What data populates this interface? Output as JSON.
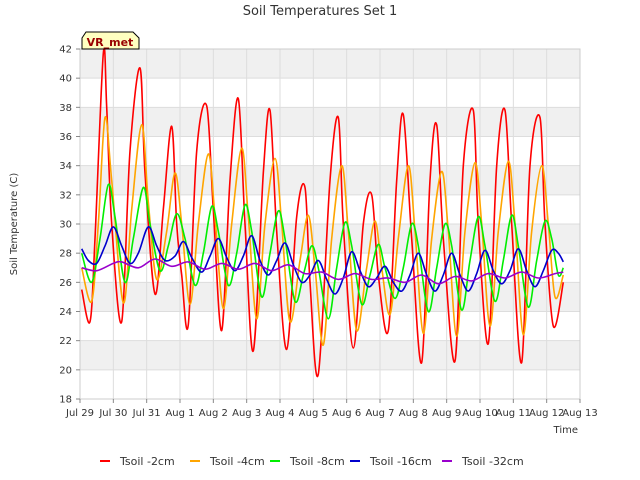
{
  "chart_data": {
    "type": "line",
    "title": "Soil Temperatures Set 1",
    "xlabel": "Time",
    "ylabel": "Soil Temperature (C)",
    "badge": "VR_met",
    "xlim": [
      29.0,
      44.0
    ],
    "ylim": [
      18,
      42
    ],
    "yticks": [
      18,
      20,
      22,
      24,
      26,
      28,
      30,
      32,
      34,
      36,
      38,
      40,
      42
    ],
    "xticks": [
      {
        "x": 29,
        "label": "Jul 29"
      },
      {
        "x": 30,
        "label": "Jul 30"
      },
      {
        "x": 31,
        "label": "Jul 31"
      },
      {
        "x": 32,
        "label": "Aug 1"
      },
      {
        "x": 33,
        "label": "Aug 2"
      },
      {
        "x": 34,
        "label": "Aug 3"
      },
      {
        "x": 35,
        "label": "Aug 4"
      },
      {
        "x": 36,
        "label": "Aug 5"
      },
      {
        "x": 37,
        "label": "Aug 6"
      },
      {
        "x": 38,
        "label": "Aug 7"
      },
      {
        "x": 39,
        "label": "Aug 8"
      },
      {
        "x": 40,
        "label": "Aug 9"
      },
      {
        "x": 41,
        "label": "Aug 10"
      },
      {
        "x": 42,
        "label": "Aug 11"
      },
      {
        "x": 43,
        "label": "Aug 12"
      },
      {
        "x": 44,
        "label": "Aug 13"
      }
    ],
    "grid": true,
    "legend_position": "bottom",
    "background_bands": "#f0f0f0",
    "series": [
      {
        "name": "Tsoil -2cm",
        "color": "#ff0000",
        "x": [
          29.05,
          29.3,
          29.45,
          29.7,
          29.8,
          29.95,
          30.25,
          30.5,
          30.8,
          30.95,
          31.25,
          31.5,
          31.75,
          31.9,
          32.05,
          32.25,
          32.5,
          32.8,
          33.0,
          33.25,
          33.5,
          33.75,
          33.95,
          34.2,
          34.5,
          34.7,
          34.9,
          35.2,
          35.5,
          35.75,
          35.9,
          36.15,
          36.5,
          36.75,
          36.9,
          37.2,
          37.5,
          37.75,
          37.95,
          38.25,
          38.5,
          38.7,
          38.95,
          39.25,
          39.5,
          39.7,
          39.9,
          40.25,
          40.5,
          40.8,
          40.95,
          41.25,
          41.5,
          41.75,
          41.95,
          42.25,
          42.5,
          42.8,
          42.95,
          43.2,
          43.5
        ],
        "y": [
          25.5,
          23.3,
          29.0,
          41.7,
          38.0,
          30.0,
          23.3,
          35.0,
          40.7,
          33.5,
          25.2,
          31.0,
          36.7,
          30.0,
          26.5,
          23.1,
          35.0,
          38.1,
          31.0,
          22.7,
          33.0,
          38.6,
          30.0,
          21.3,
          33.5,
          37.8,
          29.5,
          21.4,
          30.5,
          32.5,
          26.0,
          19.7,
          33.0,
          37.3,
          30.0,
          21.5,
          30.0,
          32.0,
          26.5,
          22.7,
          33.0,
          37.5,
          29.0,
          20.5,
          33.0,
          36.8,
          29.0,
          20.6,
          34.0,
          37.8,
          30.0,
          21.8,
          34.0,
          37.8,
          30.0,
          20.5,
          34.0,
          37.3,
          30.0,
          23.0,
          26.0
        ]
      },
      {
        "name": "Tsoil -4cm",
        "color": "#ffa500",
        "x": [
          29.05,
          29.35,
          29.55,
          29.75,
          29.95,
          30.3,
          30.55,
          30.85,
          31.05,
          31.3,
          31.6,
          31.85,
          32.05,
          32.3,
          32.55,
          32.85,
          33.05,
          33.3,
          33.55,
          33.85,
          34.05,
          34.3,
          34.55,
          34.85,
          35.05,
          35.3,
          35.6,
          35.85,
          36.05,
          36.3,
          36.55,
          36.85,
          37.05,
          37.3,
          37.6,
          37.85,
          38.05,
          38.3,
          38.55,
          38.85,
          39.05,
          39.3,
          39.55,
          39.85,
          40.05,
          40.3,
          40.55,
          40.85,
          41.05,
          41.3,
          41.55,
          41.85,
          42.05,
          42.3,
          42.55,
          42.85,
          43.05,
          43.25,
          43.5
        ],
        "y": [
          27.0,
          24.7,
          30.0,
          37.3,
          33.0,
          24.6,
          31.0,
          36.8,
          31.5,
          26.2,
          29.5,
          33.5,
          30.0,
          24.5,
          30.0,
          34.8,
          30.5,
          24.2,
          30.0,
          35.2,
          30.5,
          23.5,
          30.0,
          34.5,
          30.0,
          23.3,
          27.5,
          30.6,
          27.0,
          21.7,
          29.0,
          34.0,
          29.5,
          22.7,
          27.0,
          30.2,
          27.0,
          23.8,
          29.0,
          34.0,
          29.5,
          22.5,
          29.0,
          33.6,
          29.5,
          22.3,
          29.5,
          34.2,
          30.0,
          23.0,
          29.5,
          34.3,
          30.0,
          22.4,
          29.5,
          34.0,
          30.0,
          25.0,
          26.5
        ]
      },
      {
        "name": "Tsoil -8cm",
        "color": "#00ee00",
        "x": [
          29.05,
          29.35,
          29.6,
          29.85,
          30.05,
          30.35,
          30.6,
          30.9,
          31.1,
          31.4,
          31.65,
          31.9,
          32.15,
          32.45,
          32.7,
          32.95,
          33.15,
          33.45,
          33.7,
          33.95,
          34.15,
          34.45,
          34.7,
          34.95,
          35.15,
          35.45,
          35.7,
          35.95,
          36.15,
          36.45,
          36.7,
          36.95,
          37.15,
          37.45,
          37.7,
          37.95,
          38.15,
          38.45,
          38.7,
          38.95,
          39.15,
          39.45,
          39.7,
          39.95,
          40.15,
          40.45,
          40.7,
          40.95,
          41.15,
          41.45,
          41.7,
          41.95,
          42.15,
          42.45,
          42.7,
          42.95,
          43.15,
          43.35,
          43.5
        ],
        "y": [
          28.0,
          26.0,
          29.0,
          32.7,
          30.5,
          26.0,
          29.0,
          32.5,
          30.0,
          26.8,
          28.5,
          30.7,
          29.0,
          25.8,
          28.0,
          31.2,
          29.5,
          25.8,
          28.0,
          31.3,
          29.5,
          25.0,
          28.0,
          30.9,
          29.0,
          24.7,
          26.5,
          28.5,
          27.0,
          23.5,
          27.0,
          30.1,
          28.5,
          24.5,
          26.5,
          28.6,
          27.0,
          24.9,
          27.0,
          30.0,
          28.5,
          24.0,
          27.0,
          30.0,
          28.5,
          24.1,
          27.5,
          30.5,
          28.5,
          24.7,
          27.5,
          30.6,
          28.5,
          24.3,
          27.5,
          30.2,
          29.0,
          26.5,
          27.0
        ]
      },
      {
        "name": "Tsoil -16cm",
        "color": "#0000cc",
        "x": [
          29.05,
          29.25,
          29.5,
          29.75,
          30.0,
          30.25,
          30.5,
          30.75,
          31.05,
          31.3,
          31.55,
          31.85,
          32.1,
          32.35,
          32.65,
          32.9,
          33.15,
          33.4,
          33.65,
          33.9,
          34.15,
          34.4,
          34.65,
          34.9,
          35.15,
          35.4,
          35.65,
          35.9,
          36.15,
          36.4,
          36.65,
          36.9,
          37.15,
          37.4,
          37.65,
          37.9,
          38.15,
          38.4,
          38.65,
          38.9,
          39.15,
          39.4,
          39.65,
          39.9,
          40.15,
          40.4,
          40.65,
          40.9,
          41.15,
          41.4,
          41.65,
          41.9,
          42.15,
          42.4,
          42.65,
          42.9,
          43.15,
          43.35,
          43.5
        ],
        "y": [
          28.3,
          27.5,
          27.3,
          28.5,
          29.8,
          28.5,
          27.3,
          28.0,
          29.8,
          28.5,
          27.5,
          27.8,
          28.8,
          27.7,
          26.7,
          27.8,
          29.0,
          27.7,
          26.8,
          27.8,
          29.2,
          27.5,
          26.5,
          27.5,
          28.7,
          27.2,
          26.0,
          26.5,
          27.5,
          26.2,
          25.2,
          26.3,
          28.1,
          26.8,
          25.7,
          26.3,
          27.1,
          26.0,
          25.4,
          26.5,
          28.0,
          26.5,
          25.4,
          26.5,
          28.0,
          26.5,
          25.4,
          26.6,
          28.2,
          26.8,
          25.9,
          26.8,
          28.3,
          26.8,
          25.7,
          26.8,
          28.2,
          28.0,
          27.4
        ]
      },
      {
        "name": "Tsoil -32cm",
        "color": "#9900cc",
        "x": [
          29.05,
          29.5,
          30.0,
          30.25,
          30.75,
          31.25,
          31.75,
          32.25,
          32.75,
          33.25,
          33.75,
          34.25,
          34.75,
          35.25,
          35.75,
          36.25,
          36.75,
          37.25,
          37.75,
          38.25,
          38.75,
          39.25,
          39.75,
          40.25,
          40.75,
          41.25,
          41.75,
          42.25,
          42.75,
          43.25,
          43.5
        ],
        "y": [
          27.0,
          26.8,
          27.3,
          27.4,
          27.0,
          27.6,
          27.1,
          27.4,
          26.9,
          27.3,
          26.9,
          27.3,
          26.8,
          27.2,
          26.6,
          26.7,
          26.2,
          26.6,
          26.2,
          26.3,
          26.0,
          26.5,
          25.9,
          26.4,
          26.1,
          26.6,
          26.3,
          26.7,
          26.3,
          26.6,
          26.7
        ]
      }
    ]
  }
}
